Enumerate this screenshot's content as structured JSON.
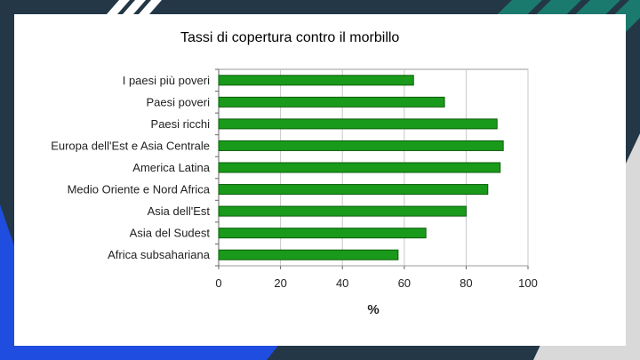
{
  "slide": {
    "title": "Tassi di copertura contro il morbillo"
  },
  "colors": {
    "background_dark": "#233746",
    "accent_teal": "#1a7a6e",
    "accent_blue": "#1f4de0",
    "bar_fill": "#1a9a1a",
    "bar_stroke": "#0b5e0b"
  },
  "chart_data": {
    "type": "bar",
    "orientation": "horizontal",
    "categories": [
      "I paesi più poveri",
      "Paesi poveri",
      "Paesi ricchi",
      "Europa dell'Est e Asia Centrale",
      "America Latina",
      "Medio Oriente e Nord Africa",
      "Asia dell'Est",
      "Asia del Sudest",
      "Africa subsahariana"
    ],
    "values": [
      63,
      73,
      90,
      92,
      91,
      87,
      80,
      67,
      58
    ],
    "xlabel": "%",
    "xlim": [
      0,
      100
    ],
    "xticks": [
      0,
      20,
      40,
      60,
      80,
      100
    ],
    "grid": true
  }
}
